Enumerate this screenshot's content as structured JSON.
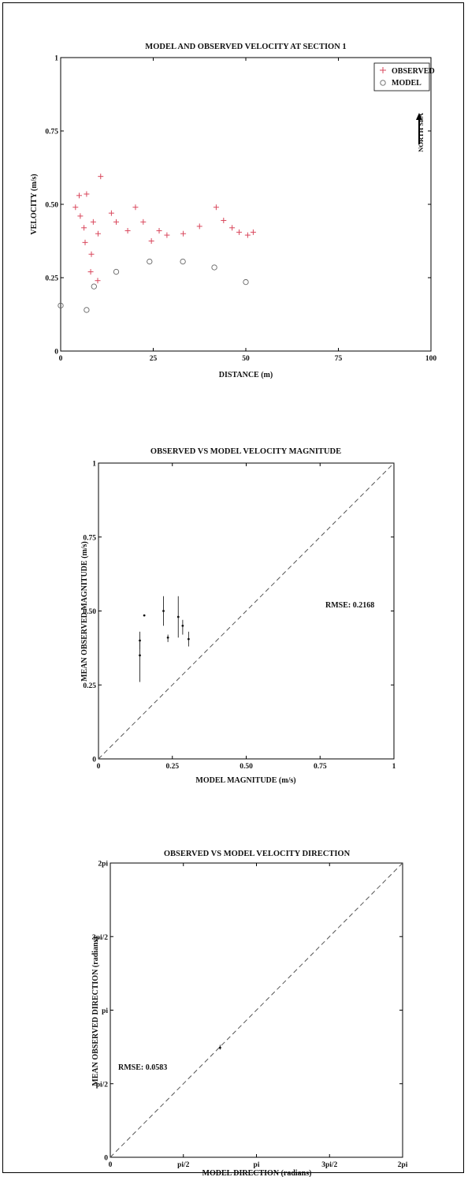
{
  "chart_data": [
    {
      "type": "scatter",
      "title": "MODEL AND OBSERVED VELOCITY AT SECTION 1",
      "xlabel": "DISTANCE (m)",
      "ylabel": "VELOCITY (m/s)",
      "xlim": [
        0,
        100
      ],
      "ylim": [
        0,
        1
      ],
      "xticks": [
        "0",
        "25",
        "50",
        "75",
        "100"
      ],
      "yticks": [
        "0",
        "0.25",
        "0.50",
        "0.75",
        "1"
      ],
      "grid": false,
      "legend_position": "top-right",
      "annotation": "NORTH SEA",
      "series": [
        {
          "name": "OBSERVED",
          "marker": "plus",
          "color": "#d9475c",
          "points": [
            [
              4.0,
              0.49
            ],
            [
              5.0,
              0.53
            ],
            [
              5.3,
              0.46
            ],
            [
              6.3,
              0.42
            ],
            [
              6.6,
              0.37
            ],
            [
              7.0,
              0.535
            ],
            [
              8.1,
              0.27
            ],
            [
              8.3,
              0.33
            ],
            [
              8.8,
              0.44
            ],
            [
              10.0,
              0.24
            ],
            [
              10.1,
              0.4
            ],
            [
              10.8,
              0.595
            ],
            [
              13.7,
              0.47
            ],
            [
              15.0,
              0.44
            ],
            [
              18.1,
              0.41
            ],
            [
              20.2,
              0.49
            ],
            [
              22.3,
              0.44
            ],
            [
              24.5,
              0.375
            ],
            [
              26.6,
              0.41
            ],
            [
              28.7,
              0.395
            ],
            [
              33.1,
              0.4
            ],
            [
              37.5,
              0.425
            ],
            [
              42.0,
              0.49
            ],
            [
              44.0,
              0.445
            ],
            [
              46.3,
              0.42
            ],
            [
              48.2,
              0.405
            ],
            [
              50.5,
              0.395
            ],
            [
              52.0,
              0.405
            ]
          ]
        },
        {
          "name": "MODEL",
          "marker": "circle",
          "color": "#666666",
          "points": [
            [
              0.0,
              0.155
            ],
            [
              7.0,
              0.14
            ],
            [
              9.0,
              0.22
            ],
            [
              15.0,
              0.27
            ],
            [
              24.0,
              0.305
            ],
            [
              33.0,
              0.305
            ],
            [
              41.5,
              0.285
            ],
            [
              50.0,
              0.235
            ]
          ]
        }
      ]
    },
    {
      "type": "scatter",
      "title": "OBSERVED VS MODEL VELOCITY MAGNITUDE",
      "xlabel": "MODEL MAGNITUDE (m/s)",
      "ylabel": "MEAN OBSERVED MAGNITUDE (m/s)",
      "xlim": [
        0,
        1
      ],
      "ylim": [
        0,
        1
      ],
      "xticks": [
        "0",
        "0.25",
        "0.50",
        "0.75",
        "1"
      ],
      "yticks": [
        "0",
        "0.25",
        "0.50",
        "0.75",
        "1"
      ],
      "grid": false,
      "annotation": "RMSE:  0.2168",
      "reference_line": "y=x",
      "points": [
        {
          "x": 0.14,
          "y": 0.4,
          "low": 0.37,
          "high": 0.43
        },
        {
          "x": 0.14,
          "y": 0.35,
          "low": 0.26,
          "high": 0.4
        },
        {
          "x": 0.155,
          "y": 0.485,
          "low": 0.485,
          "high": 0.485
        },
        {
          "x": 0.22,
          "y": 0.5,
          "low": 0.45,
          "high": 0.55
        },
        {
          "x": 0.235,
          "y": 0.41,
          "low": 0.395,
          "high": 0.42
        },
        {
          "x": 0.27,
          "y": 0.48,
          "low": 0.41,
          "high": 0.55
        },
        {
          "x": 0.285,
          "y": 0.45,
          "low": 0.42,
          "high": 0.47
        },
        {
          "x": 0.305,
          "y": 0.405,
          "low": 0.38,
          "high": 0.43
        }
      ]
    },
    {
      "type": "scatter",
      "title": "OBSERVED VS MODEL VELOCITY DIRECTION",
      "xlabel": "MODEL DIRECTION (radians)",
      "ylabel": "MEAN OBSERVED DIRECTION (radians)",
      "xlim": [
        0,
        6.2832
      ],
      "ylim": [
        0,
        6.2832
      ],
      "xticks": [
        "0",
        "pi/2",
        "pi",
        "3pi/2",
        "2pi"
      ],
      "yticks": [
        "0",
        "pi/2",
        "pi",
        "3pi/2",
        "2pi"
      ],
      "grid": false,
      "annotation": "RMSE:  0.0583",
      "reference_line": "y=x",
      "points": [
        {
          "x": 2.36,
          "y": 2.34,
          "low": 2.3,
          "high": 2.4
        }
      ]
    }
  ]
}
